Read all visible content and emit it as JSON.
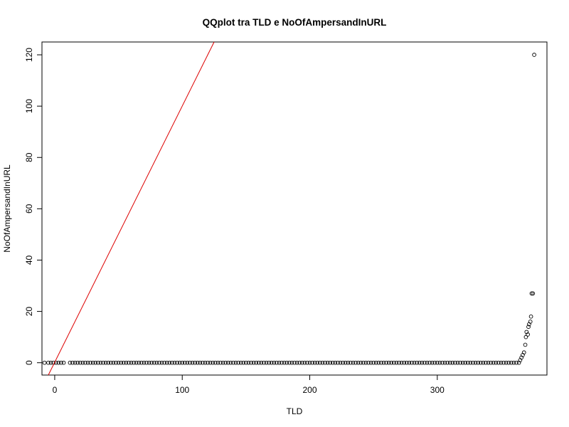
{
  "chart_data": {
    "type": "scatter",
    "title": "QQplot tra TLD e NoOfAmpersandInURL",
    "xlabel": "TLD",
    "ylabel": "NoOfAmpersandInURL",
    "xlim": [
      -10,
      386
    ],
    "ylim": [
      -4.8,
      125
    ],
    "x_ticks": [
      0,
      100,
      200,
      300
    ],
    "y_ticks": [
      0,
      20,
      40,
      60,
      80,
      100,
      120
    ],
    "grid": false,
    "legend": "none",
    "series": [
      {
        "style": "open-circle",
        "points": [
          [
            -8,
            0
          ],
          [
            -5,
            0
          ],
          [
            -3,
            0
          ],
          [
            -1,
            0
          ],
          [
            1,
            0
          ],
          [
            3,
            0
          ],
          [
            5,
            0
          ],
          [
            7,
            0
          ],
          [
            12,
            0
          ],
          [
            14,
            0
          ],
          [
            16,
            0
          ],
          [
            18,
            0
          ],
          [
            20,
            0
          ],
          [
            22,
            0
          ],
          [
            24,
            0
          ],
          [
            26,
            0
          ],
          [
            28,
            0
          ],
          [
            30,
            0
          ],
          [
            32,
            0
          ],
          [
            34,
            0
          ],
          [
            36,
            0
          ],
          [
            38,
            0
          ],
          [
            40,
            0
          ],
          [
            42,
            0
          ],
          [
            44,
            0
          ],
          [
            46,
            0
          ],
          [
            48,
            0
          ],
          [
            50,
            0
          ],
          [
            52,
            0
          ],
          [
            54,
            0
          ],
          [
            56,
            0
          ],
          [
            58,
            0
          ],
          [
            60,
            0
          ],
          [
            62,
            0
          ],
          [
            64,
            0
          ],
          [
            66,
            0
          ],
          [
            68,
            0
          ],
          [
            70,
            0
          ],
          [
            72,
            0
          ],
          [
            74,
            0
          ],
          [
            76,
            0
          ],
          [
            78,
            0
          ],
          [
            80,
            0
          ],
          [
            82,
            0
          ],
          [
            84,
            0
          ],
          [
            86,
            0
          ],
          [
            88,
            0
          ],
          [
            90,
            0
          ],
          [
            92,
            0
          ],
          [
            94,
            0
          ],
          [
            96,
            0
          ],
          [
            98,
            0
          ],
          [
            100,
            0
          ],
          [
            102,
            0
          ],
          [
            104,
            0
          ],
          [
            106,
            0
          ],
          [
            108,
            0
          ],
          [
            110,
            0
          ],
          [
            112,
            0
          ],
          [
            114,
            0
          ],
          [
            116,
            0
          ],
          [
            118,
            0
          ],
          [
            120,
            0
          ],
          [
            122,
            0
          ],
          [
            124,
            0
          ],
          [
            126,
            0
          ],
          [
            128,
            0
          ],
          [
            130,
            0
          ],
          [
            132,
            0
          ],
          [
            134,
            0
          ],
          [
            136,
            0
          ],
          [
            138,
            0
          ],
          [
            140,
            0
          ],
          [
            142,
            0
          ],
          [
            144,
            0
          ],
          [
            146,
            0
          ],
          [
            148,
            0
          ],
          [
            150,
            0
          ],
          [
            152,
            0
          ],
          [
            154,
            0
          ],
          [
            156,
            0
          ],
          [
            158,
            0
          ],
          [
            160,
            0
          ],
          [
            162,
            0
          ],
          [
            164,
            0
          ],
          [
            166,
            0
          ],
          [
            168,
            0
          ],
          [
            170,
            0
          ],
          [
            172,
            0
          ],
          [
            174,
            0
          ],
          [
            176,
            0
          ],
          [
            178,
            0
          ],
          [
            180,
            0
          ],
          [
            182,
            0
          ],
          [
            184,
            0
          ],
          [
            186,
            0
          ],
          [
            188,
            0
          ],
          [
            190,
            0
          ],
          [
            192,
            0
          ],
          [
            194,
            0
          ],
          [
            196,
            0
          ],
          [
            198,
            0
          ],
          [
            200,
            0
          ],
          [
            202,
            0
          ],
          [
            204,
            0
          ],
          [
            206,
            0
          ],
          [
            208,
            0
          ],
          [
            210,
            0
          ],
          [
            212,
            0
          ],
          [
            214,
            0
          ],
          [
            216,
            0
          ],
          [
            218,
            0
          ],
          [
            220,
            0
          ],
          [
            222,
            0
          ],
          [
            224,
            0
          ],
          [
            226,
            0
          ],
          [
            228,
            0
          ],
          [
            230,
            0
          ],
          [
            232,
            0
          ],
          [
            234,
            0
          ],
          [
            236,
            0
          ],
          [
            238,
            0
          ],
          [
            240,
            0
          ],
          [
            242,
            0
          ],
          [
            244,
            0
          ],
          [
            246,
            0
          ],
          [
            248,
            0
          ],
          [
            250,
            0
          ],
          [
            252,
            0
          ],
          [
            254,
            0
          ],
          [
            256,
            0
          ],
          [
            258,
            0
          ],
          [
            260,
            0
          ],
          [
            262,
            0
          ],
          [
            264,
            0
          ],
          [
            266,
            0
          ],
          [
            268,
            0
          ],
          [
            270,
            0
          ],
          [
            272,
            0
          ],
          [
            274,
            0
          ],
          [
            276,
            0
          ],
          [
            278,
            0
          ],
          [
            280,
            0
          ],
          [
            282,
            0
          ],
          [
            284,
            0
          ],
          [
            286,
            0
          ],
          [
            288,
            0
          ],
          [
            290,
            0
          ],
          [
            292,
            0
          ],
          [
            294,
            0
          ],
          [
            296,
            0
          ],
          [
            298,
            0
          ],
          [
            300,
            0
          ],
          [
            302,
            0
          ],
          [
            304,
            0
          ],
          [
            306,
            0
          ],
          [
            308,
            0
          ],
          [
            310,
            0
          ],
          [
            312,
            0
          ],
          [
            314,
            0
          ],
          [
            316,
            0
          ],
          [
            318,
            0
          ],
          [
            320,
            0
          ],
          [
            322,
            0
          ],
          [
            324,
            0
          ],
          [
            326,
            0
          ],
          [
            328,
            0
          ],
          [
            330,
            0
          ],
          [
            332,
            0
          ],
          [
            334,
            0
          ],
          [
            336,
            0
          ],
          [
            338,
            0
          ],
          [
            340,
            0
          ],
          [
            342,
            0
          ],
          [
            344,
            0
          ],
          [
            346,
            0
          ],
          [
            348,
            0
          ],
          [
            350,
            0
          ],
          [
            352,
            0
          ],
          [
            354,
            0
          ],
          [
            356,
            0
          ],
          [
            358,
            0
          ],
          [
            360,
            0
          ],
          [
            362,
            0
          ],
          [
            364,
            0
          ],
          [
            365,
            1
          ],
          [
            366,
            2
          ],
          [
            367,
            3
          ],
          [
            368,
            4
          ],
          [
            369,
            7
          ],
          [
            369.5,
            10
          ],
          [
            370,
            12
          ],
          [
            371,
            11
          ],
          [
            371.5,
            14
          ],
          [
            372,
            15
          ],
          [
            373,
            16
          ],
          [
            373.5,
            18
          ],
          [
            374,
            27
          ],
          [
            375,
            27
          ],
          [
            376,
            120
          ]
        ]
      },
      {
        "style": "reference-line",
        "color": "#dd0000",
        "line": [
          [
            -5,
            -4.8
          ],
          [
            125,
            125
          ]
        ]
      }
    ]
  }
}
